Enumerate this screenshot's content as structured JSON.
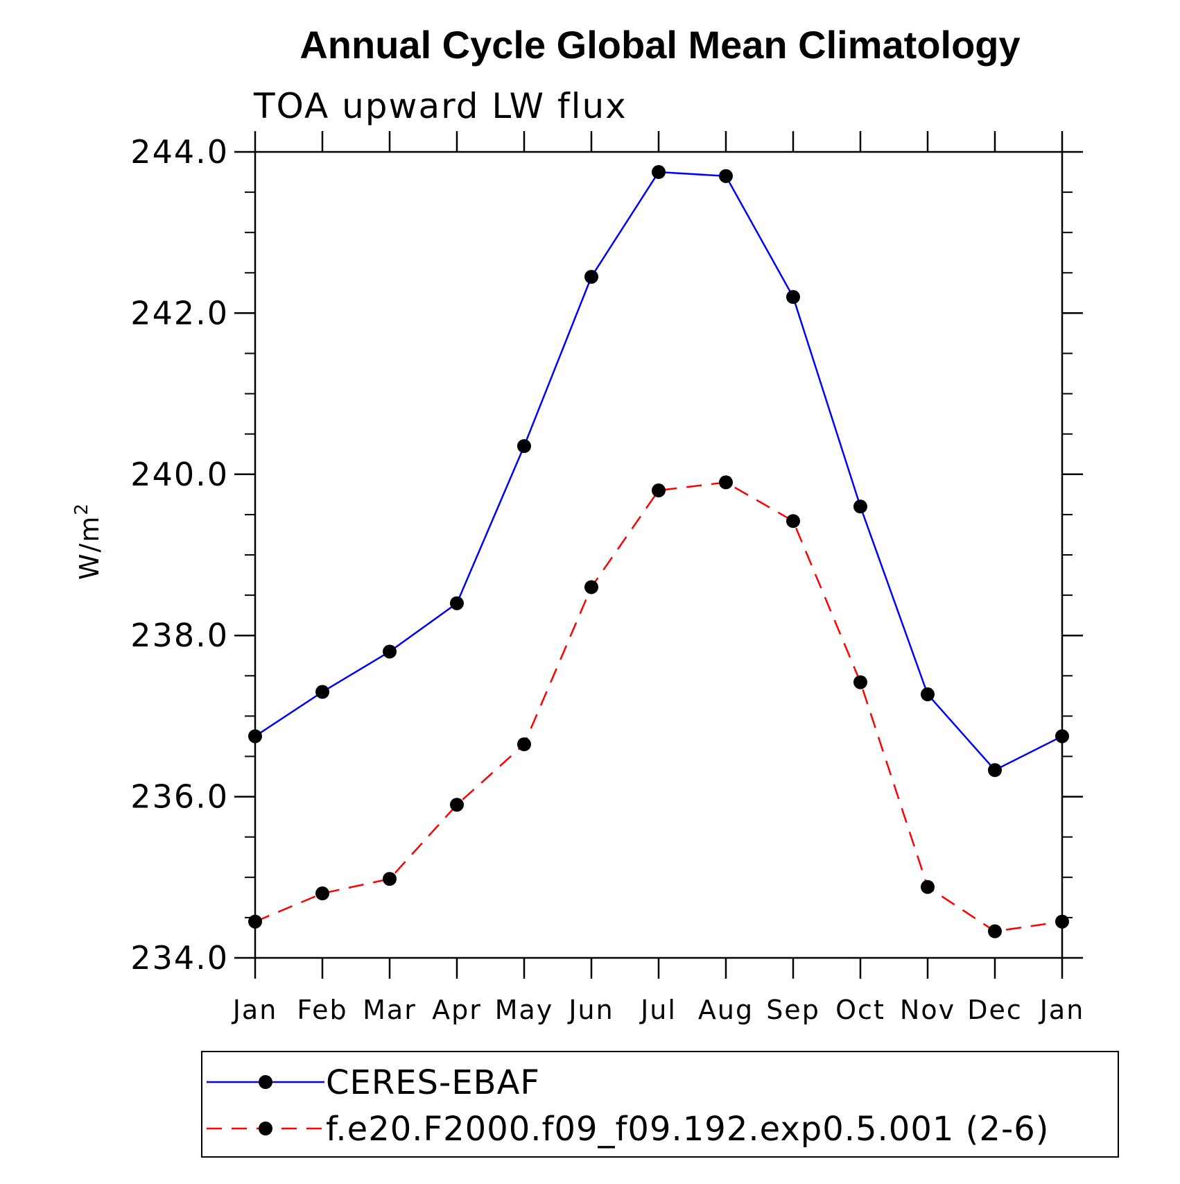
{
  "chart_data": {
    "type": "line",
    "title": "Annual Cycle Global Mean Climatology",
    "subtitle": "TOA upward LW flux",
    "xlabel": "",
    "ylabel": "W/m",
    "ylabel_superscript": "2",
    "categories": [
      "Jan",
      "Feb",
      "Mar",
      "Apr",
      "May",
      "Jun",
      "Jul",
      "Aug",
      "Sep",
      "Oct",
      "Nov",
      "Dec",
      "Jan"
    ],
    "ylim": [
      234.0,
      244.0
    ],
    "yticks": [
      234.0,
      236.0,
      238.0,
      240.0,
      242.0,
      244.0
    ],
    "ytick_labels": [
      "234.0",
      "236.0",
      "238.0",
      "240.0",
      "242.0",
      "244.0"
    ],
    "y_minor_step": 0.5,
    "grid": false,
    "legend_position": "bottom",
    "series": [
      {
        "name": "CERES-EBAF",
        "color": "#0000ff",
        "line_style": "solid",
        "marker": "filled-circle",
        "values": [
          236.75,
          237.3,
          237.8,
          238.4,
          240.35,
          242.45,
          243.75,
          243.7,
          242.2,
          239.6,
          237.27,
          236.33,
          236.75
        ]
      },
      {
        "name": "f.e20.F2000.f09_f09.192.exp0.5.001 (2-6)",
        "color": "#ff0000",
        "line_style": "dashed",
        "marker": "filled-circle",
        "values": [
          234.45,
          234.8,
          234.98,
          235.9,
          236.65,
          238.6,
          239.8,
          239.9,
          239.42,
          237.42,
          234.88,
          234.33,
          234.45
        ]
      }
    ]
  }
}
